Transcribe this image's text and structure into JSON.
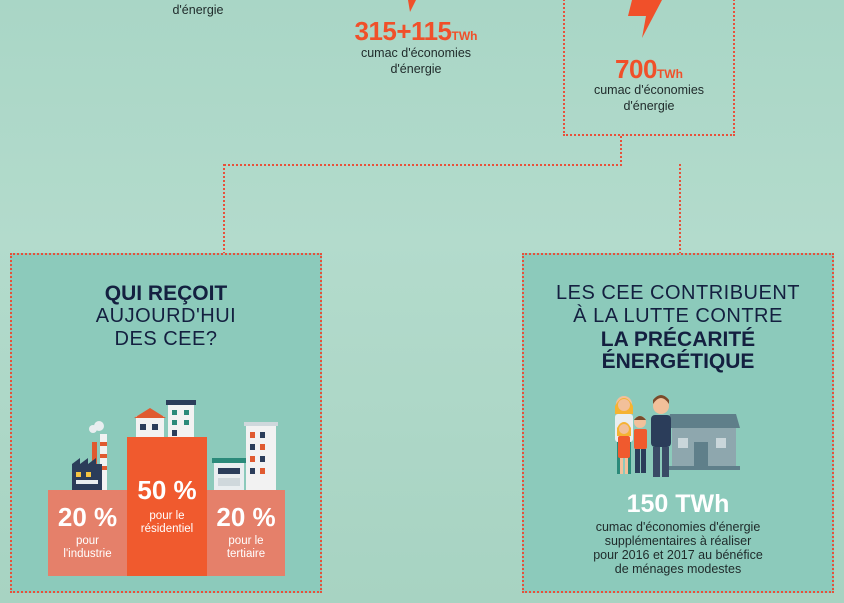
{
  "top": {
    "left_caption": "d'énergie",
    "middle_value": "315+115",
    "middle_unit": "TWh",
    "middle_caption_1": "cumac d'économies",
    "middle_caption_2": "d'énergie",
    "right_value": "700",
    "right_unit": "TWh",
    "right_caption_1": "cumac d'économies",
    "right_caption_2": "d'énergie"
  },
  "left_panel": {
    "title_bold": "QUI REÇOIT",
    "title_line2": "AUJOURD'HUI",
    "title_line3": "DES CEE?",
    "bars": [
      {
        "pct": "20 %",
        "line1": "pour",
        "line2": "l'industrie",
        "value": 20
      },
      {
        "pct": "50 %",
        "line1": "pour le",
        "line2": "résidentiel",
        "value": 50
      },
      {
        "pct": "20 %",
        "line1": "pour le",
        "line2": "tertiaire",
        "value": 20
      }
    ]
  },
  "right_panel": {
    "title_line1": "LES CEE CONTRIBUENT",
    "title_line2": "À LA LUTTE CONTRE",
    "title_bold1": "LA PRÉCARITÉ",
    "title_bold2": "ÉNERGÉTIQUE",
    "value": "150 TWh",
    "caption_1": "cumac d'économies d'énergie",
    "caption_2": "supplémentaires à réaliser",
    "caption_3": "pour 2016 et 2017 au bénéfice",
    "caption_4": "de ménages modestes"
  },
  "colors": {
    "accent": "#f0502a",
    "panel": "#8ccabb",
    "bar_light": "#e5806a",
    "bar_dark": "#f05a2e",
    "title": "#142040"
  }
}
